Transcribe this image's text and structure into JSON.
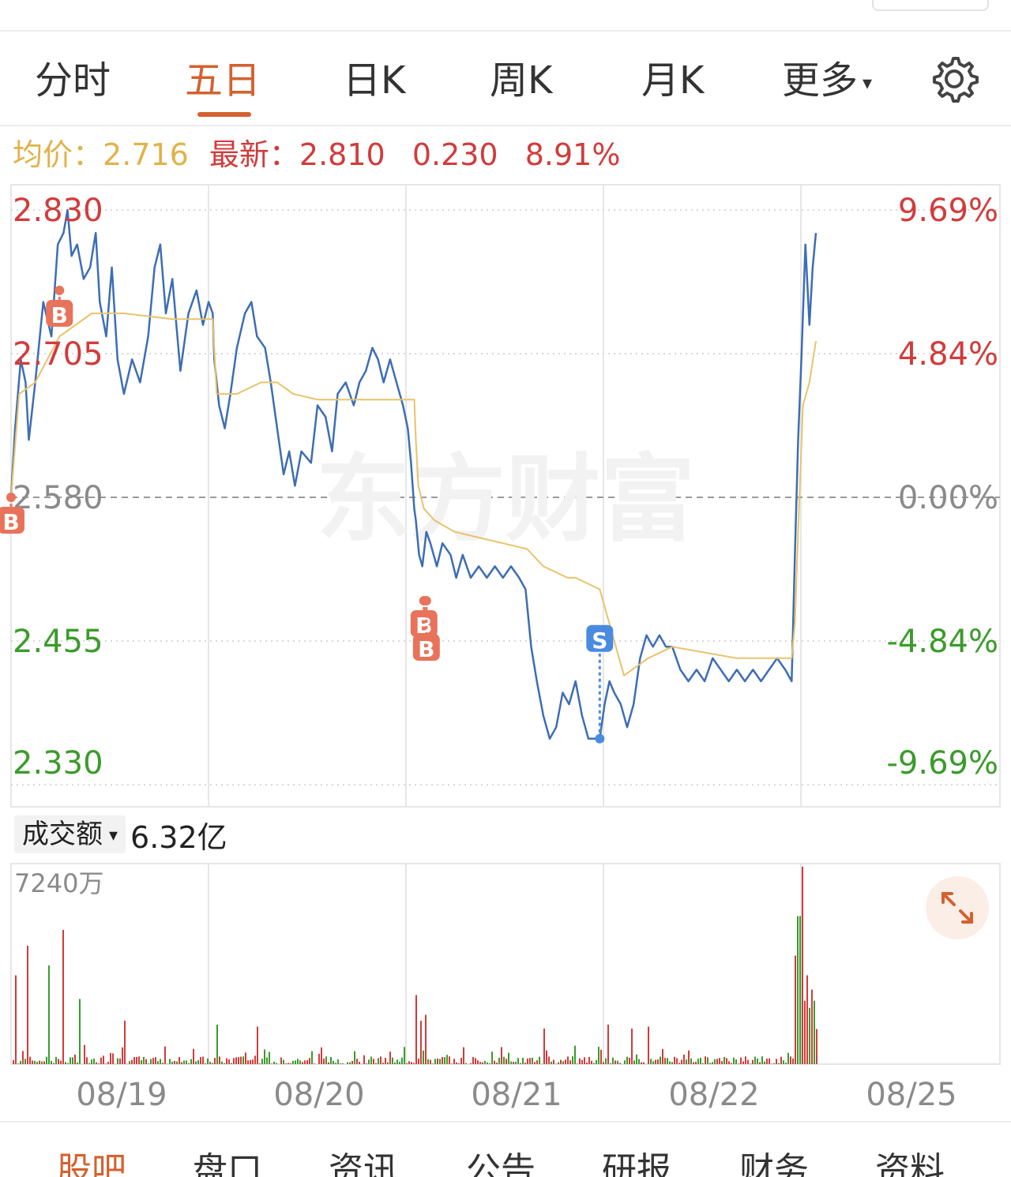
{
  "tabs": [
    {
      "label": "分时",
      "active": false
    },
    {
      "label": "五日",
      "active": true
    },
    {
      "label": "日K",
      "active": false
    },
    {
      "label": "周K",
      "active": false
    },
    {
      "label": "月K",
      "active": false
    },
    {
      "label": "更多",
      "active": false
    }
  ],
  "info": {
    "avg_label": "均价：",
    "avg_value": "2.716",
    "latest_label": "最新：",
    "latest_value": "2.810",
    "change": "0.230",
    "change_pct": "8.91%"
  },
  "colors": {
    "accent": "#d4612f",
    "up": "#d23b3b",
    "down": "#3b9b2b",
    "price_line": "#3d6db5",
    "avg_line": "#e8c36a",
    "sell_marker": "#4a8be0"
  },
  "watermark": "东方财富",
  "volume": {
    "selector_label": "成交额",
    "total": "6.32亿",
    "max_label": "7240万"
  },
  "chart_data": {
    "type": "line",
    "x_labels": [
      "08/19",
      "08/20",
      "08/21",
      "08/22",
      "08/25"
    ],
    "ylim": [
      2.33,
      2.83
    ],
    "y_tick_labels": [
      "2.830",
      "2.705",
      "2.580",
      "2.455",
      "2.330"
    ],
    "y_pct_labels": [
      "9.69%",
      "4.84%",
      "0.00%",
      "-4.84%",
      "-9.69%"
    ],
    "prev_close": 2.58,
    "series": [
      {
        "values": [
          [
            0.0,
            2.58
          ],
          [
            0.005,
            2.64
          ],
          [
            0.012,
            2.7
          ],
          [
            0.018,
            2.68
          ],
          [
            0.022,
            2.63
          ],
          [
            0.03,
            2.68
          ],
          [
            0.04,
            2.75
          ],
          [
            0.05,
            2.72
          ],
          [
            0.058,
            2.8
          ],
          [
            0.065,
            2.81
          ],
          [
            0.07,
            2.83
          ],
          [
            0.075,
            2.79
          ],
          [
            0.082,
            2.8
          ],
          [
            0.09,
            2.77
          ],
          [
            0.098,
            2.78
          ],
          [
            0.105,
            2.81
          ],
          [
            0.11,
            2.75
          ],
          [
            0.118,
            2.72
          ],
          [
            0.125,
            2.78
          ],
          [
            0.132,
            2.7
          ],
          [
            0.14,
            2.67
          ],
          [
            0.15,
            2.7
          ],
          [
            0.16,
            2.68
          ],
          [
            0.17,
            2.72
          ],
          [
            0.178,
            2.78
          ],
          [
            0.185,
            2.8
          ],
          [
            0.192,
            2.74
          ],
          [
            0.2,
            2.77
          ],
          [
            0.21,
            2.69
          ],
          [
            0.22,
            2.74
          ],
          [
            0.23,
            2.76
          ],
          [
            0.238,
            2.73
          ],
          [
            0.245,
            2.75
          ],
          [
            0.25,
            2.74
          ],
          [
            0.252,
            2.7
          ],
          [
            0.258,
            2.66
          ],
          [
            0.265,
            2.64
          ],
          [
            0.272,
            2.67
          ],
          [
            0.28,
            2.71
          ],
          [
            0.29,
            2.74
          ],
          [
            0.298,
            2.75
          ],
          [
            0.305,
            2.72
          ],
          [
            0.315,
            2.71
          ],
          [
            0.322,
            2.68
          ],
          [
            0.33,
            2.64
          ],
          [
            0.338,
            2.6
          ],
          [
            0.345,
            2.62
          ],
          [
            0.352,
            2.59
          ],
          [
            0.36,
            2.62
          ],
          [
            0.372,
            2.61
          ],
          [
            0.38,
            2.66
          ],
          [
            0.39,
            2.65
          ],
          [
            0.398,
            2.62
          ],
          [
            0.405,
            2.67
          ],
          [
            0.415,
            2.68
          ],
          [
            0.425,
            2.66
          ],
          [
            0.432,
            2.68
          ],
          [
            0.44,
            2.69
          ],
          [
            0.448,
            2.71
          ],
          [
            0.455,
            2.7
          ],
          [
            0.462,
            2.68
          ],
          [
            0.47,
            2.7
          ],
          [
            0.478,
            2.68
          ],
          [
            0.486,
            2.66
          ],
          [
            0.492,
            2.64
          ],
          [
            0.496,
            2.61
          ],
          [
            0.5,
            2.57
          ],
          [
            0.502,
            2.56
          ],
          [
            0.506,
            2.53
          ],
          [
            0.51,
            2.52
          ],
          [
            0.515,
            2.55
          ],
          [
            0.52,
            2.54
          ],
          [
            0.528,
            2.52
          ],
          [
            0.535,
            2.54
          ],
          [
            0.545,
            2.53
          ],
          [
            0.552,
            2.51
          ],
          [
            0.56,
            2.53
          ],
          [
            0.57,
            2.51
          ],
          [
            0.58,
            2.52
          ],
          [
            0.59,
            2.51
          ],
          [
            0.6,
            2.52
          ],
          [
            0.61,
            2.51
          ],
          [
            0.62,
            2.52
          ],
          [
            0.63,
            2.51
          ],
          [
            0.638,
            2.5
          ],
          [
            0.645,
            2.45
          ],
          [
            0.652,
            2.42
          ],
          [
            0.66,
            2.39
          ],
          [
            0.668,
            2.37
          ],
          [
            0.676,
            2.38
          ],
          [
            0.684,
            2.41
          ],
          [
            0.692,
            2.4
          ],
          [
            0.7,
            2.42
          ],
          [
            0.708,
            2.39
          ],
          [
            0.716,
            2.37
          ],
          [
            0.724,
            2.37
          ],
          [
            0.73,
            2.37
          ],
          [
            0.736,
            2.4
          ],
          [
            0.742,
            2.42
          ],
          [
            0.748,
            2.41
          ],
          [
            0.756,
            2.4
          ],
          [
            0.764,
            2.38
          ],
          [
            0.772,
            2.4
          ],
          [
            0.78,
            2.44
          ],
          [
            0.788,
            2.46
          ],
          [
            0.796,
            2.45
          ],
          [
            0.804,
            2.46
          ],
          [
            0.812,
            2.45
          ],
          [
            0.82,
            2.45
          ],
          [
            0.83,
            2.43
          ],
          [
            0.84,
            2.42
          ],
          [
            0.85,
            2.43
          ],
          [
            0.86,
            2.42
          ],
          [
            0.87,
            2.44
          ],
          [
            0.88,
            2.43
          ],
          [
            0.89,
            2.42
          ],
          [
            0.9,
            2.43
          ],
          [
            0.91,
            2.42
          ],
          [
            0.92,
            2.43
          ],
          [
            0.93,
            2.42
          ],
          [
            0.94,
            2.43
          ],
          [
            0.95,
            2.44
          ],
          [
            0.96,
            2.43
          ],
          [
            0.968,
            2.42
          ],
          [
            0.972,
            2.53
          ],
          [
            0.976,
            2.63
          ],
          [
            0.98,
            2.7
          ],
          [
            0.985,
            2.8
          ],
          [
            0.99,
            2.73
          ],
          [
            0.994,
            2.78
          ],
          [
            0.998,
            2.81
          ]
        ]
      },
      {
        "values": [
          [
            0.0,
            2.58
          ],
          [
            0.01,
            2.67
          ],
          [
            0.03,
            2.68
          ],
          [
            0.06,
            2.72
          ],
          [
            0.1,
            2.74
          ],
          [
            0.14,
            2.74
          ],
          [
            0.2,
            2.735
          ],
          [
            0.25,
            2.735
          ],
          [
            0.255,
            2.67
          ],
          [
            0.28,
            2.67
          ],
          [
            0.31,
            2.68
          ],
          [
            0.33,
            2.68
          ],
          [
            0.35,
            2.67
          ],
          [
            0.38,
            2.665
          ],
          [
            0.42,
            2.665
          ],
          [
            0.46,
            2.665
          ],
          [
            0.5,
            2.665
          ],
          [
            0.502,
            2.63
          ],
          [
            0.505,
            2.59
          ],
          [
            0.512,
            2.57
          ],
          [
            0.525,
            2.56
          ],
          [
            0.55,
            2.55
          ],
          [
            0.58,
            2.545
          ],
          [
            0.61,
            2.54
          ],
          [
            0.64,
            2.535
          ],
          [
            0.66,
            2.52
          ],
          [
            0.69,
            2.51
          ],
          [
            0.7,
            2.51
          ],
          [
            0.73,
            2.5
          ],
          [
            0.76,
            2.425
          ],
          [
            0.79,
            2.44
          ],
          [
            0.82,
            2.45
          ],
          [
            0.86,
            2.445
          ],
          [
            0.9,
            2.44
          ],
          [
            0.93,
            2.44
          ],
          [
            0.968,
            2.44
          ],
          [
            0.972,
            2.47
          ],
          [
            0.976,
            2.55
          ],
          [
            0.982,
            2.66
          ],
          [
            0.99,
            2.68
          ],
          [
            0.998,
            2.716
          ]
        ]
      }
    ],
    "trade_markers": [
      {
        "type": "B",
        "t": 0.0,
        "price": 2.58
      },
      {
        "type": "B",
        "t": 0.06,
        "price": 2.76
      },
      {
        "type": "B",
        "t": 0.512,
        "price": 2.49
      },
      {
        "type": "B",
        "t": 0.515,
        "price": 2.49
      },
      {
        "type": "S",
        "t": 0.73,
        "price": 2.37
      }
    ],
    "volume_max": 7240,
    "volume_unit": "万"
  },
  "bottom_tabs": [
    "股吧",
    "盘口",
    "资讯",
    "公告",
    "研报",
    "财务",
    "资料"
  ]
}
